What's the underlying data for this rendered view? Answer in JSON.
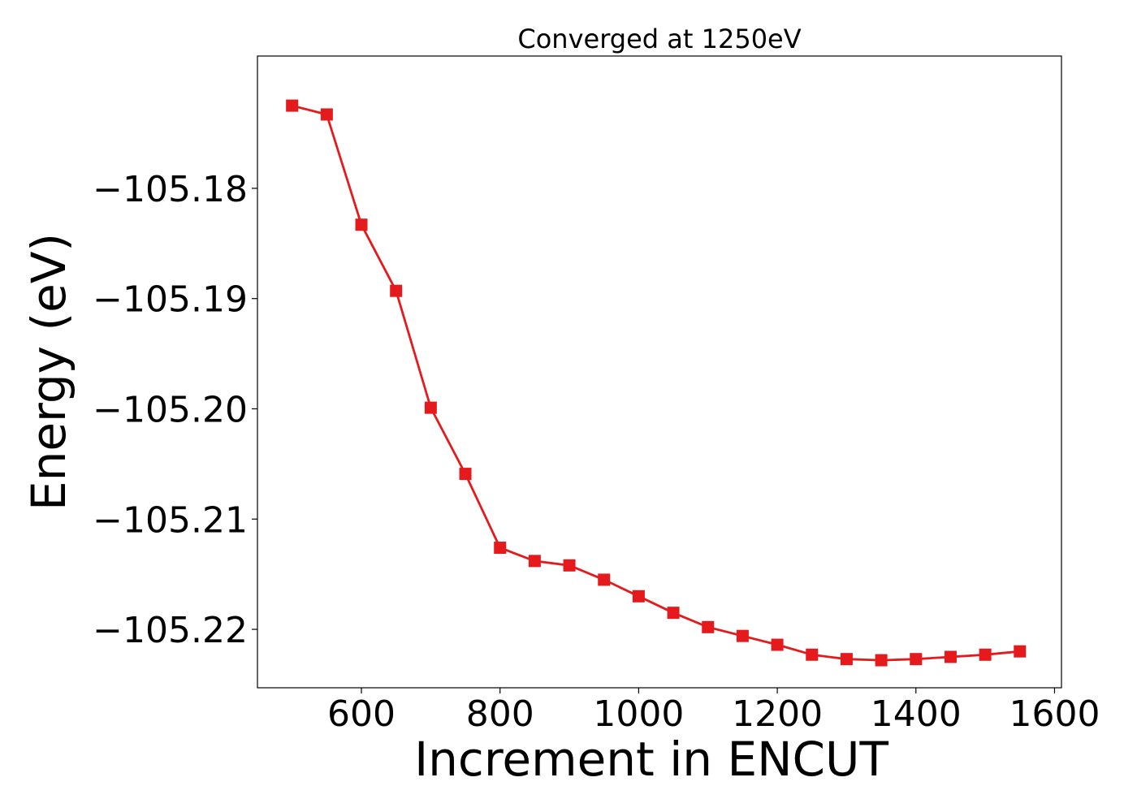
{
  "chart_data": {
    "type": "line",
    "title": "Converged at 1250eV",
    "xlabel": "Increment in ENCUT",
    "ylabel": "Energy (eV)",
    "xlim": [
      450,
      1610
    ],
    "ylim": [
      -105.2253,
      -105.168
    ],
    "x_ticks": [
      600,
      800,
      1000,
      1200,
      1400,
      1600
    ],
    "x_tick_labels": [
      "600",
      "800",
      "1000",
      "1200",
      "1400",
      "1600"
    ],
    "y_ticks": [
      -105.18,
      -105.19,
      -105.2,
      -105.21,
      -105.22
    ],
    "y_tick_labels": [
      "−105.18",
      "−105.19",
      "−105.20",
      "−105.21",
      "−105.22"
    ],
    "grid": false,
    "series": [
      {
        "color": "#e41a1c",
        "marker": "square",
        "x": [
          500,
          550,
          600,
          650,
          700,
          750,
          800,
          850,
          900,
          950,
          1000,
          1050,
          1100,
          1150,
          1200,
          1250,
          1300,
          1350,
          1400,
          1450,
          1500,
          1550
        ],
        "y": [
          -105.1725,
          -105.1733,
          -105.1833,
          -105.1893,
          -105.1999,
          -105.2059,
          -105.2126,
          -105.2138,
          -105.2142,
          -105.2155,
          -105.217,
          -105.2185,
          -105.2198,
          -105.2206,
          -105.2214,
          -105.2223,
          -105.2227,
          -105.2228,
          -105.2227,
          -105.2225,
          -105.2223,
          -105.222
        ]
      }
    ]
  }
}
